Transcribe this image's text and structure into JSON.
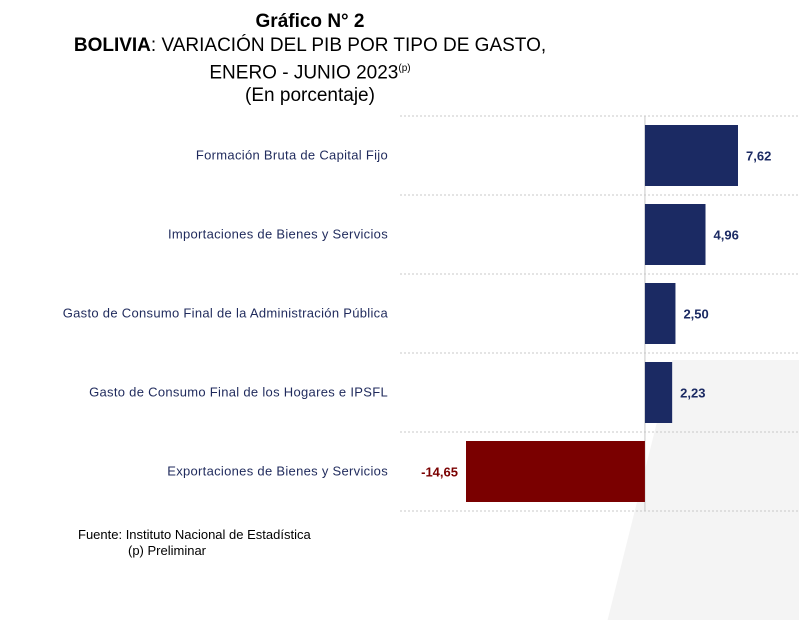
{
  "title": {
    "line1": "Gráfico N° 2",
    "country": "BOLIVIA",
    "line2_rest": ": VARIACIÓN DEL PIB POR TIPO DE GASTO,",
    "line3": "ENERO - JUNIO 2023",
    "line3_sup": "(p)",
    "line4": "(En porcentaje)"
  },
  "footer": {
    "source": "Fuente: Instituto Nacional de Estadística",
    "note": "(p) Preliminar"
  },
  "colors": {
    "positive": "#1b2a63",
    "negative": "#7a0000",
    "label_text": "#1f2a5c",
    "axis": "#c8c8c8"
  },
  "chart_data": {
    "type": "bar",
    "orientation": "horizontal",
    "categories": [
      "Formación Bruta de Capital Fijo",
      "Importaciones de Bienes y Servicios",
      "Gasto de Consumo Final de la Administración Pública",
      "Gasto de Consumo Final de los Hogares e  IPSFL",
      "Exportaciones de Bienes y Servicios"
    ],
    "values": [
      7.62,
      4.96,
      2.5,
      2.23,
      -14.65
    ],
    "value_labels": [
      "7,62",
      "4,96",
      "2,50",
      "2,23",
      "-14,65"
    ],
    "xlim": [
      -14.65,
      7.62
    ],
    "grid": true
  }
}
